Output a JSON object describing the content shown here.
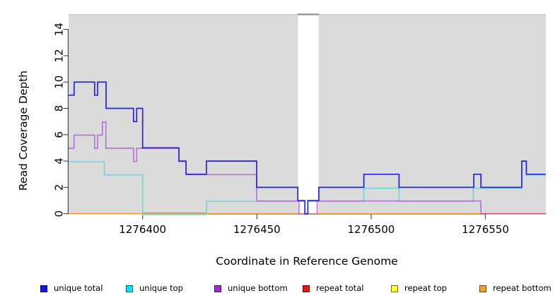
{
  "chart_data": {
    "type": "step-line",
    "title": "",
    "xlabel": "Coordinate in Reference Genome",
    "ylabel": "Read Coverage Depth",
    "xlim": [
      1276367.6,
      1276576.4
    ],
    "ylim": [
      0,
      15.2
    ],
    "x_ticks": [
      "1276400",
      "1276450",
      "1276500",
      "1276550"
    ],
    "x_tick_values": [
      1276400,
      1276450,
      1276500,
      1276550
    ],
    "y_ticks": [
      "0",
      "2",
      "4",
      "6",
      "8",
      "10",
      "12",
      "14"
    ],
    "y_tick_values": [
      0,
      2,
      4,
      6,
      8,
      10,
      12,
      14
    ],
    "plot_bg": "#DBDBDB",
    "grid": false,
    "gap_region": {
      "from": 1276468,
      "to": 1276477,
      "note": "white vertical no-data band"
    },
    "series": [
      {
        "name": "unique total",
        "line_color": "#2525E0",
        "points": [
          [
            1276367.6,
            9
          ],
          [
            1276370.0,
            10
          ],
          [
            1276379.0,
            9
          ],
          [
            1276380.3,
            10
          ],
          [
            1276384.0,
            8
          ],
          [
            1276396.0,
            7
          ],
          [
            1276397.4,
            8
          ],
          [
            1276400.0,
            5
          ],
          [
            1276415.9,
            4
          ],
          [
            1276419.0,
            3
          ],
          [
            1276427.9,
            4
          ],
          [
            1276449.9,
            2
          ],
          [
            1276467.9,
            1
          ],
          [
            1276471.0,
            0
          ],
          [
            1276472.3,
            1
          ],
          [
            1276477.1,
            2
          ],
          [
            1276496.8,
            3
          ],
          [
            1276512.2,
            2
          ],
          [
            1276544.9,
            3
          ],
          [
            1276548.0,
            2
          ],
          [
            1276565.9,
            4
          ],
          [
            1276567.9,
            3
          ],
          [
            1276576.4,
            3
          ]
        ]
      },
      {
        "name": "unique top",
        "line_color": "#6FD8DC",
        "points": [
          [
            1276367.6,
            4
          ],
          [
            1276383.3,
            3
          ],
          [
            1276400.0,
            0
          ],
          [
            1276427.9,
            1
          ],
          [
            1276471.0,
            0
          ],
          [
            1276472.3,
            1
          ],
          [
            1276496.8,
            2
          ],
          [
            1276512.2,
            1
          ],
          [
            1276544.7,
            2
          ],
          [
            1276565.9,
            4
          ],
          [
            1276567.9,
            3
          ],
          [
            1276576.4,
            3
          ]
        ]
      },
      {
        "name": "unique bottom",
        "line_color": "#B873DB",
        "points": [
          [
            1276367.6,
            5
          ],
          [
            1276370.0,
            6
          ],
          [
            1276379.0,
            5
          ],
          [
            1276380.3,
            6
          ],
          [
            1276382.4,
            7
          ],
          [
            1276383.9,
            5
          ],
          [
            1276396.0,
            4
          ],
          [
            1276397.4,
            5
          ],
          [
            1276415.9,
            4
          ],
          [
            1276419.0,
            3
          ],
          [
            1276449.9,
            1
          ],
          [
            1276468.4,
            0
          ],
          [
            1276476.4,
            1
          ],
          [
            1276548.0,
            0
          ],
          [
            1276549.6,
            0
          ]
        ]
      },
      {
        "name": "repeat total",
        "line_color": "#D24D60",
        "points": [
          [
            1276548.0,
            0
          ],
          [
            1276576.4,
            0
          ]
        ]
      },
      {
        "name": "repeat top",
        "line_color": "#F5E642",
        "points": []
      },
      {
        "name": "repeat bottom",
        "line_color": "#FB9A32",
        "points": [
          [
            1276367.6,
            0
          ],
          [
            1276548.0,
            0
          ]
        ]
      }
    ],
    "overlap_marks": [
      {
        "note": "unique top at depth 0 overlapping repeat bottom (greenish)",
        "color": "#5FC49B",
        "from": 1276400.0,
        "to": 1276427.9,
        "value": 0
      }
    ],
    "legend_position": "bottom"
  },
  "legend": {
    "items": [
      {
        "label": "unique total",
        "color": "#1414EE"
      },
      {
        "label": "unique top",
        "color": "#00E5EE"
      },
      {
        "label": "unique bottom",
        "color": "#9B30D0"
      },
      {
        "label": "repeat total",
        "color": "#EE1111"
      },
      {
        "label": "repeat top",
        "color": "#FFFF33"
      },
      {
        "label": "repeat bottom",
        "color": "#F0A030"
      }
    ]
  }
}
